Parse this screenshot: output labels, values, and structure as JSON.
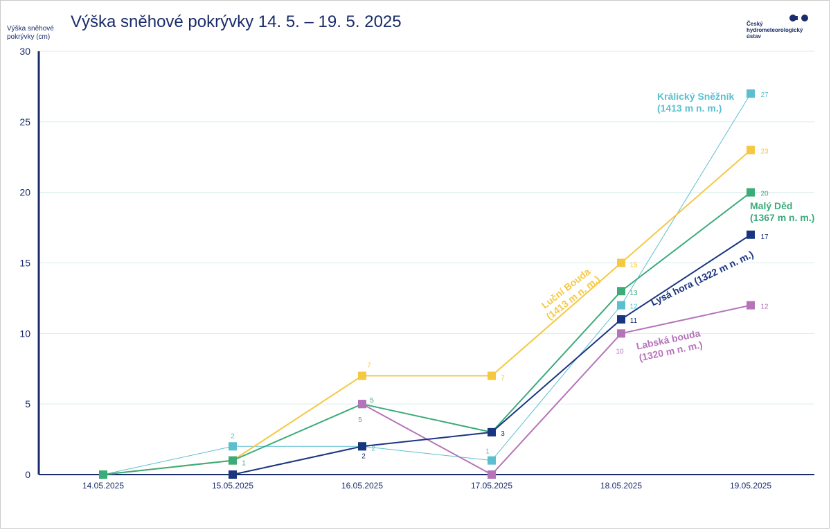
{
  "title": "Výška sněhové pokrývky 14. 5. – 19. 5. 2025",
  "logo": {
    "lines": [
      "Český",
      "hydrometeorologický",
      "ústav"
    ],
    "icon": "chmi-logo-icon",
    "color": "#1a2c6b"
  },
  "chart_data": {
    "type": "line",
    "title": "Výška sněhové pokrývky 14. 5. – 19. 5. 2025",
    "ylabel": "Výška sněhové pokrývky (cm)",
    "xlabel": "",
    "categories": [
      "14.05.2025",
      "15.05.2025",
      "16.05.2025",
      "17.05.2025",
      "18.05.2025",
      "19.05.2025"
    ],
    "ylim": [
      0,
      30
    ],
    "yticks": [
      "0",
      "5",
      "10",
      "15",
      "20",
      "25",
      "30"
    ],
    "grid": true,
    "series": [
      {
        "name": "Králický Sněžník (1413 m n. m.)",
        "label_lines": [
          "Králický Sněžník",
          "(1413 m n. m.)"
        ],
        "color": "#5bbfcf",
        "values": [
          0,
          2,
          2,
          1,
          12,
          27
        ],
        "point_labels": [
          "",
          "2",
          "2",
          "1",
          "12",
          "27"
        ]
      },
      {
        "name": "Luční Bouda (1413 m n. m.)",
        "label_lines": [
          "Luční Bouda",
          "(1413 m n. m.)"
        ],
        "color": "#f5c842",
        "values": [
          0,
          1,
          7,
          7,
          15,
          23
        ],
        "point_labels": [
          "",
          "",
          "7",
          "7",
          "15",
          "23"
        ]
      },
      {
        "name": "Malý Děd (1367 m n. m.)",
        "label_lines": [
          "Malý Děd",
          "(1367 m n. m.)"
        ],
        "color": "#3cab7a",
        "values": [
          0,
          1,
          5,
          3,
          13,
          20
        ],
        "point_labels": [
          "",
          "1",
          "5",
          "",
          "13",
          "20"
        ]
      },
      {
        "name": "Lysá hora (1322 m n. m.)",
        "label_lines": [
          "Lysá hora (1322 m n. m.)"
        ],
        "color": "#1a3580",
        "values": [
          null,
          0,
          2,
          3,
          11,
          17
        ],
        "point_labels": [
          "",
          "",
          "2",
          "3",
          "11",
          "17"
        ]
      },
      {
        "name": "Labská bouda (1320 m n. m.)",
        "label_lines": [
          "Labská bouda",
          "(1320 m n. m.)"
        ],
        "color": "#b574b9",
        "values": [
          null,
          null,
          5,
          0,
          10,
          12
        ],
        "point_labels": [
          "",
          "",
          "5",
          "",
          "10",
          "12"
        ]
      }
    ]
  }
}
